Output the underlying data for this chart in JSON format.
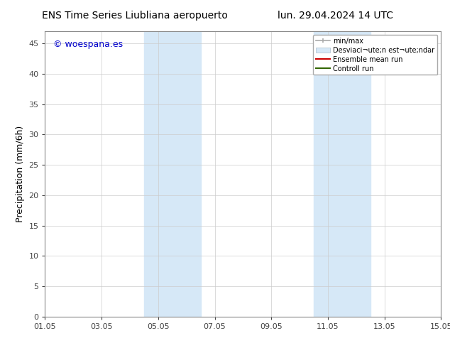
{
  "title_left": "ENS Time Series Liubliana aeropuerto",
  "title_right": "lun. 29.04.2024 14 UTC",
  "ylabel": "Precipitation (mm/6h)",
  "watermark": "© woespana.es",
  "watermark_color": "#0000cc",
  "xlim_left": 0.0,
  "xlim_right": 14.0,
  "ylim_bottom": 0,
  "ylim_top": 47,
  "yticks": [
    0,
    5,
    10,
    15,
    20,
    25,
    30,
    35,
    40,
    45
  ],
  "xtick_labels": [
    "01.05",
    "03.05",
    "05.05",
    "07.05",
    "09.05",
    "11.05",
    "13.05",
    "15.05"
  ],
  "xtick_positions": [
    0,
    2,
    4,
    6,
    8,
    10,
    12,
    14
  ],
  "shaded_regions": [
    {
      "xmin": 3.5,
      "xmax": 5.5,
      "color": "#d6e8f7"
    },
    {
      "xmin": 9.5,
      "xmax": 11.5,
      "color": "#d6e8f7"
    }
  ],
  "legend_label_min_max": "min/max",
  "legend_label_std": "Desviaci¬ute;n est¬ute;ndar",
  "legend_label_ens": "Ensemble mean run",
  "legend_label_ctrl": "Controll run",
  "color_minmax": "#aaaaaa",
  "color_std": "#d6e8f7",
  "color_ens": "#cc0000",
  "color_ctrl": "#336600",
  "background_color": "#ffffff",
  "plot_bg_color": "#ffffff",
  "grid_color": "#cccccc",
  "title_fontsize": 10,
  "ylabel_fontsize": 9,
  "tick_fontsize": 8,
  "legend_fontsize": 7,
  "watermark_fontsize": 9
}
